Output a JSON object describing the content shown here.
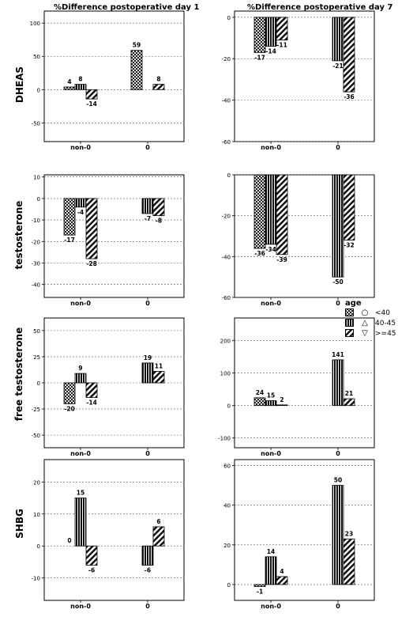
{
  "column_titles": [
    "%Difference postoperative day 1",
    "%Difference postoperative day 7"
  ],
  "legend": {
    "title": "age",
    "items": [
      {
        "label": "<40",
        "marker": "○",
        "pattern": "checker"
      },
      {
        "label": "40-45",
        "marker": "△",
        "pattern": "vertical"
      },
      {
        "label": ">=45",
        "marker": "▽",
        "pattern": "diagonal"
      }
    ]
  },
  "chart_data": [
    {
      "type": "bar",
      "row_label": "DHEAS",
      "column": "%Difference postoperative day 1",
      "categories": [
        "non-0",
        "0"
      ],
      "ylim": [
        -78,
        118
      ],
      "ticks": [
        100,
        50,
        0,
        -50
      ],
      "series": [
        {
          "values": [
            4,
            59
          ]
        },
        {
          "values": [
            8,
            0
          ]
        },
        {
          "values": [
            -14,
            8
          ]
        }
      ],
      "data_labels": [
        [
          "4",
          "59"
        ],
        [
          "8",
          ""
        ],
        [
          "-14",
          "8"
        ]
      ]
    },
    {
      "type": "bar",
      "row_label": "DHEAS",
      "column": "%Difference postoperative day 7",
      "categories": [
        "non-0",
        "0"
      ],
      "ylim": [
        -60,
        3
      ],
      "ticks": [
        0,
        -20,
        -40,
        -60
      ],
      "series": [
        {
          "values": [
            -17,
            0
          ]
        },
        {
          "values": [
            -14,
            -21
          ]
        },
        {
          "values": [
            -11,
            -36
          ]
        }
      ],
      "data_labels": [
        [
          "-17",
          ""
        ],
        [
          "-14",
          "-21"
        ],
        [
          "-11",
          "-36"
        ]
      ]
    },
    {
      "type": "bar",
      "row_label": "testosterone",
      "column": "%Difference postoperative day 1",
      "categories": [
        "non-0",
        "0"
      ],
      "ylim": [
        -46,
        11
      ],
      "ticks": [
        10,
        0,
        -10,
        -20,
        -30,
        -40
      ],
      "series": [
        {
          "values": [
            -17,
            0
          ]
        },
        {
          "values": [
            -4,
            -7
          ]
        },
        {
          "values": [
            -28,
            -8
          ]
        }
      ],
      "data_labels": [
        [
          "-17",
          ""
        ],
        [
          "-4",
          "-7"
        ],
        [
          "-28",
          "-8"
        ]
      ]
    },
    {
      "type": "bar",
      "row_label": "testosterone",
      "column": "%Difference postoperative day 7",
      "categories": [
        "non-0",
        "0"
      ],
      "ylim": [
        -60,
        0
      ],
      "ticks": [
        0,
        -20,
        -40,
        -60
      ],
      "series": [
        {
          "values": [
            -36,
            0
          ]
        },
        {
          "values": [
            -34,
            -50
          ]
        },
        {
          "values": [
            -39,
            -32
          ]
        }
      ],
      "data_labels": [
        [
          "-36",
          ""
        ],
        [
          "-34",
          "-50"
        ],
        [
          "-39",
          "-32"
        ]
      ]
    },
    {
      "type": "bar",
      "row_label": "free testosterone",
      "column": "%Difference postoperative day 1",
      "categories": [
        "non-0",
        "0"
      ],
      "ylim": [
        -62,
        62
      ],
      "ticks": [
        50,
        25,
        0,
        -25,
        -50
      ],
      "series": [
        {
          "values": [
            -20,
            0
          ]
        },
        {
          "values": [
            9,
            19
          ]
        },
        {
          "values": [
            -14,
            11
          ]
        }
      ],
      "data_labels": [
        [
          "-20",
          ""
        ],
        [
          "9",
          "19"
        ],
        [
          "-14",
          "11"
        ]
      ]
    },
    {
      "type": "bar",
      "row_label": "free testosterone",
      "column": "%Difference postoperative day 7",
      "categories": [
        "non-0",
        "0"
      ],
      "ylim": [
        -130,
        270
      ],
      "ticks": [
        200,
        100,
        0,
        -100
      ],
      "series": [
        {
          "values": [
            24,
            0
          ]
        },
        {
          "values": [
            15,
            141
          ]
        },
        {
          "values": [
            2,
            21
          ]
        }
      ],
      "data_labels": [
        [
          "24",
          ""
        ],
        [
          "15",
          "141"
        ],
        [
          "2",
          "21"
        ]
      ]
    },
    {
      "type": "bar",
      "row_label": "SHBG",
      "column": "%Difference postoperative day 1",
      "categories": [
        "non-0",
        "0"
      ],
      "ylim": [
        -17,
        27
      ],
      "ticks": [
        20,
        10,
        0,
        -10
      ],
      "series": [
        {
          "values": [
            0,
            0
          ]
        },
        {
          "values": [
            15,
            -6
          ]
        },
        {
          "values": [
            -6,
            6
          ]
        }
      ],
      "data_labels": [
        [
          "0",
          ""
        ],
        [
          "15",
          "-6"
        ],
        [
          "-6",
          "6"
        ]
      ]
    },
    {
      "type": "bar",
      "row_label": "SHBG",
      "column": "%Difference postoperative day 7",
      "categories": [
        "non-0",
        "0"
      ],
      "ylim": [
        -8,
        63
      ],
      "ticks": [
        60,
        40,
        20,
        0
      ],
      "series": [
        {
          "values": [
            -1,
            0
          ]
        },
        {
          "values": [
            14,
            50
          ]
        },
        {
          "values": [
            4,
            23
          ]
        }
      ],
      "data_labels": [
        [
          "-1",
          ""
        ],
        [
          "14",
          "50"
        ],
        [
          "4",
          "23"
        ]
      ]
    }
  ]
}
